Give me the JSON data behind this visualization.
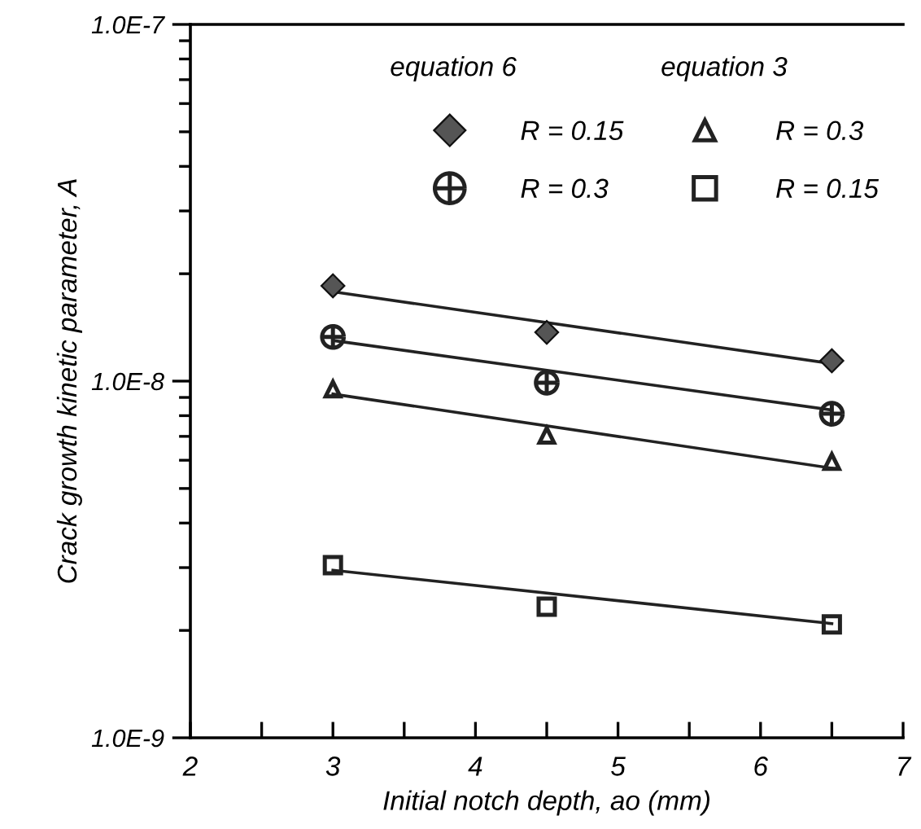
{
  "chart_data": {
    "type": "scatter",
    "xlabel": "Initial notch depth, ao (mm)",
    "ylabel": "Crack growth kinetic parameter, A",
    "log": "y",
    "xlim": [
      2,
      7
    ],
    "ylim": [
      1e-09,
      1e-07
    ],
    "xticks": [
      2,
      {
        "value": 2.5,
        "label": null
      },
      3,
      {
        "value": 3.5,
        "label": null
      },
      4,
      {
        "value": 4.5,
        "label": null
      },
      5,
      {
        "value": 5.5,
        "label": null
      },
      6,
      {
        "value": 6.5,
        "label": null
      },
      7
    ],
    "yticks": [
      {
        "value": 1e-09,
        "label": "1.0E-9"
      },
      {
        "value": 1e-08,
        "label": "1.0E-8"
      },
      {
        "value": 1e-07,
        "label": "1.0E-7"
      }
    ],
    "grid": false,
    "legend": "top right",
    "annotations": [
      "equation 6",
      "equation 3"
    ],
    "series": [
      {
        "name": "R = 0.15",
        "color": "#555555",
        "marker": "diamond",
        "x": [
          3,
          4.5,
          6.5
        ],
        "values": [
          1.85e-08,
          1.37e-08,
          1.14e-08
        ]
      },
      {
        "name": "R = 0.3",
        "color": "#222222",
        "marker": "cross",
        "x": [
          3,
          4.5,
          6.5
        ],
        "values": [
          1.33e-08,
          9.9e-09,
          8.1e-09
        ]
      },
      {
        "name": "R = 0.3",
        "color": "#222222",
        "marker": "triangle",
        "x": [
          3,
          4.5,
          6.5
        ],
        "values": [
          9.5e-09,
          7.05e-09,
          5.95e-09
        ]
      },
      {
        "name": "R = 0.15",
        "color": "#222222",
        "marker": "square",
        "x": [
          3,
          4.5,
          6.5
        ],
        "values": [
          3.05e-09,
          2.33e-09,
          2.08e-09
        ]
      },
      {
        "type": "line",
        "color": "#222222",
        "x": [
          3,
          6.5
        ],
        "values": [
          1.78e-08,
          1.12e-08
        ]
      },
      {
        "type": "line",
        "color": "#222222",
        "x": [
          3,
          6.5
        ],
        "values": [
          1.3e-08,
          8.3e-09
        ]
      },
      {
        "type": "line",
        "color": "#222222",
        "x": [
          3,
          6.5
        ],
        "values": [
          9.2e-09,
          5.7e-09
        ]
      },
      {
        "type": "line",
        "color": "#222222",
        "x": [
          3,
          6.5
        ],
        "values": [
          2.95e-09,
          2.09e-09
        ]
      }
    ]
  }
}
